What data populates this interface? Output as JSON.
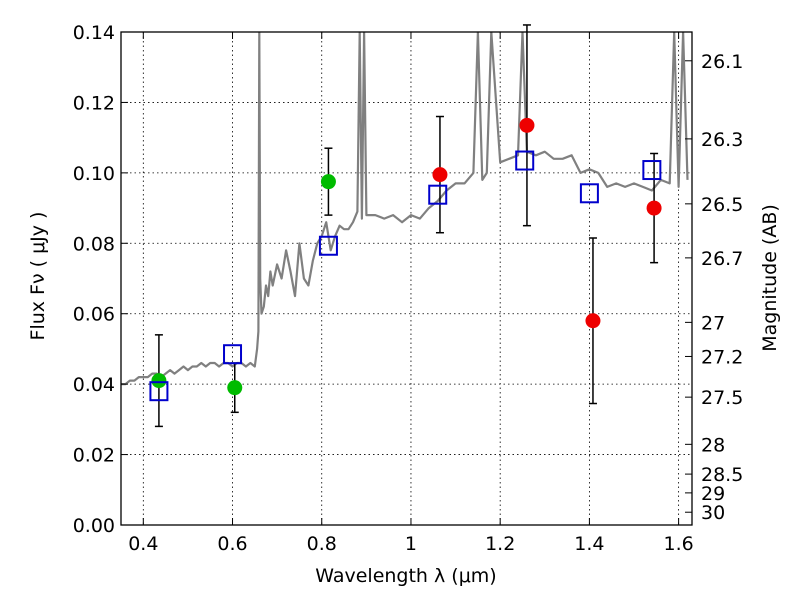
{
  "chart_data": {
    "type": "scatter",
    "title": "",
    "xlabel": "Wavelength  λ (μm)",
    "ylabel": "Flux  Fν  ( μJy )",
    "ylabel_right": "Magnitude (AB)",
    "xlim": [
      0.35,
      1.63
    ],
    "ylim": [
      0.0,
      0.14
    ],
    "grid": true,
    "x_ticks": [
      0.4,
      0.6,
      0.8,
      1.0,
      1.2,
      1.4,
      1.6
    ],
    "x_tick_labels": [
      "0.4",
      "0.6",
      "0.8",
      "1",
      "1.2",
      "1.4",
      "1.6"
    ],
    "y_ticks": [
      0.0,
      0.02,
      0.04,
      0.06,
      0.08,
      0.1,
      0.12,
      0.14
    ],
    "y_tick_labels": [
      "0.00",
      "0.02",
      "0.04",
      "0.06",
      "0.08",
      "0.10",
      "0.12",
      "0.14"
    ],
    "right_ticks": [
      26.1,
      26.3,
      26.5,
      26.7,
      27,
      27.2,
      27.5,
      28,
      28.5,
      29,
      30
    ],
    "right_tick_labels": [
      "26.1",
      "26.3",
      "26.5",
      "26.7",
      "27",
      "27.2",
      "27.5",
      "28",
      "28.5",
      "29",
      "30"
    ],
    "colors": {
      "model": "#808080",
      "green": "#00bb00",
      "red": "#ee0000",
      "blue": "#0000cc",
      "axis": "#000000"
    },
    "series": [
      {
        "name": "model spectrum",
        "kind": "line",
        "x": [
          0.35,
          0.36,
          0.37,
          0.38,
          0.39,
          0.4,
          0.41,
          0.42,
          0.43,
          0.44,
          0.45,
          0.46,
          0.47,
          0.48,
          0.49,
          0.5,
          0.51,
          0.52,
          0.53,
          0.54,
          0.55,
          0.56,
          0.57,
          0.58,
          0.59,
          0.6,
          0.61,
          0.62,
          0.63,
          0.64,
          0.65,
          0.655,
          0.658,
          0.66,
          0.662,
          0.665,
          0.67,
          0.675,
          0.68,
          0.685,
          0.69,
          0.7,
          0.71,
          0.72,
          0.73,
          0.74,
          0.75,
          0.76,
          0.77,
          0.78,
          0.79,
          0.8,
          0.81,
          0.82,
          0.83,
          0.84,
          0.85,
          0.86,
          0.87,
          0.88,
          0.885,
          0.89,
          0.895,
          0.9,
          0.92,
          0.94,
          0.96,
          0.98,
          1.0,
          1.02,
          1.04,
          1.06,
          1.08,
          1.1,
          1.12,
          1.14,
          1.15,
          1.16,
          1.17,
          1.18,
          1.2,
          1.22,
          1.24,
          1.25,
          1.26,
          1.28,
          1.3,
          1.32,
          1.34,
          1.36,
          1.38,
          1.4,
          1.42,
          1.44,
          1.46,
          1.48,
          1.5,
          1.52,
          1.54,
          1.56,
          1.58,
          1.59,
          1.6,
          1.61,
          1.62
        ],
        "y": [
          0.04,
          0.04,
          0.041,
          0.041,
          0.042,
          0.042,
          0.042,
          0.043,
          0.043,
          0.042,
          0.043,
          0.044,
          0.043,
          0.044,
          0.045,
          0.044,
          0.045,
          0.045,
          0.046,
          0.045,
          0.046,
          0.046,
          0.045,
          0.046,
          0.046,
          0.045,
          0.046,
          0.046,
          0.045,
          0.046,
          0.045,
          0.05,
          0.055,
          0.14,
          0.07,
          0.06,
          0.062,
          0.068,
          0.065,
          0.072,
          0.068,
          0.074,
          0.07,
          0.078,
          0.072,
          0.065,
          0.08,
          0.07,
          0.068,
          0.075,
          0.08,
          0.082,
          0.086,
          0.078,
          0.082,
          0.085,
          0.084,
          0.084,
          0.086,
          0.089,
          0.14,
          0.087,
          0.14,
          0.088,
          0.088,
          0.087,
          0.088,
          0.086,
          0.088,
          0.087,
          0.09,
          0.092,
          0.095,
          0.097,
          0.097,
          0.1,
          0.14,
          0.098,
          0.1,
          0.14,
          0.103,
          0.104,
          0.105,
          0.14,
          0.106,
          0.105,
          0.106,
          0.104,
          0.104,
          0.105,
          0.1,
          0.101,
          0.1,
          0.096,
          0.097,
          0.096,
          0.097,
          0.096,
          0.095,
          0.098,
          0.097,
          0.14,
          0.096,
          0.14,
          0.098
        ]
      },
      {
        "name": "green points",
        "kind": "points",
        "x": [
          0.435,
          0.605,
          0.815
        ],
        "y": [
          0.041,
          0.039,
          0.0975
        ],
        "yerr": [
          0.013,
          0.007,
          0.0095
        ]
      },
      {
        "name": "red points",
        "kind": "points",
        "x": [
          1.065,
          1.26,
          1.408,
          1.545
        ],
        "y": [
          0.0995,
          0.1135,
          0.058,
          0.09
        ],
        "yerr": [
          0.0165,
          0.0285,
          0.0235,
          0.0155
        ]
      },
      {
        "name": "blue squares",
        "kind": "squares",
        "x": [
          0.435,
          0.6,
          0.815,
          1.06,
          1.255,
          1.4,
          1.54
        ],
        "y": [
          0.038,
          0.0485,
          0.0793,
          0.0938,
          0.1035,
          0.0942,
          0.1008
        ]
      }
    ]
  }
}
